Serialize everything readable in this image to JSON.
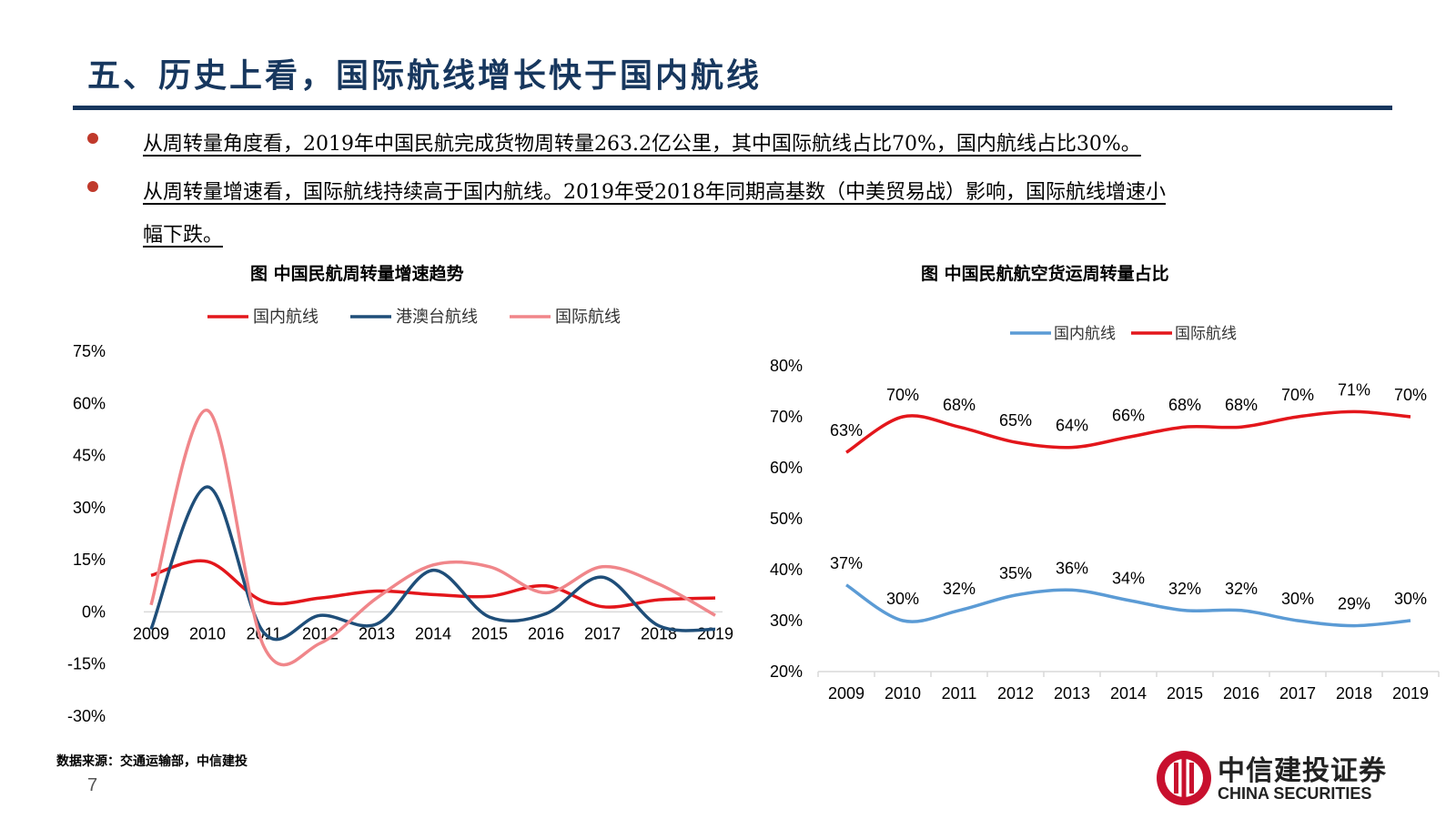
{
  "header": {
    "title": "五、历史上看，国际航线增长快于国内航线"
  },
  "bullets": [
    "从周转量角度看，2019年中国民航完成货物周转量263.2亿公里，其中国际航线占比70%，国内航线占比30%。",
    "从周转量增速看，国际航线持续高于国内航线。2019年受2018年同期高基数（中美贸易战）影响，国际航线增速小",
    "幅下跌。"
  ],
  "colors": {
    "title": "#17375e",
    "bullet": "#c0392b",
    "domestic_red": "#e3161b",
    "hkmotw_navy": "#1f4e79",
    "international_pink": "#f0868a",
    "domestic_blue": "#5b9bd5"
  },
  "chart_data": [
    {
      "type": "line",
      "title": "图  中国民航周转量增速趋势",
      "x": [
        "2009",
        "2010",
        "2011",
        "2012",
        "2013",
        "2014",
        "2015",
        "2016",
        "2017",
        "2018",
        "2019"
      ],
      "series": [
        {
          "name": "国内航线",
          "color": "#e3161b",
          "values": [
            10.5,
            14.5,
            3,
            4,
            6,
            5,
            4.5,
            7.5,
            1.5,
            3.5,
            4
          ]
        },
        {
          "name": "港澳台航线",
          "color": "#1f4e79",
          "values": [
            -5,
            36,
            -6,
            -1,
            -3.5,
            12,
            -1.5,
            -0.5,
            10,
            -4,
            -5
          ]
        },
        {
          "name": "国际航线",
          "color": "#f0868a",
          "values": [
            2,
            58,
            -10,
            -9,
            4,
            13.5,
            13,
            5.5,
            13,
            8,
            -1
          ]
        }
      ],
      "yticks": [
        "75%",
        "60%",
        "45%",
        "30%",
        "15%",
        "0%",
        "-15%",
        "-30%"
      ],
      "ylim": [
        -30,
        75
      ],
      "legend": "top",
      "grid": false
    },
    {
      "type": "line",
      "title": "图  中国民航航空货运周转量占比",
      "x": [
        "2009",
        "2010",
        "2011",
        "2012",
        "2013",
        "2014",
        "2015",
        "2016",
        "2017",
        "2018",
        "2019"
      ],
      "series": [
        {
          "name": "国内航线",
          "color": "#5b9bd5",
          "values": [
            37,
            30,
            32,
            35,
            36,
            34,
            32,
            32,
            30,
            29,
            30
          ],
          "labels": [
            "37%",
            "30%",
            "32%",
            "35%",
            "36%",
            "34%",
            "32%",
            "32%",
            "30%",
            "29%",
            "30%"
          ]
        },
        {
          "name": "国际航线",
          "color": "#e3161b",
          "values": [
            63,
            70,
            68,
            65,
            64,
            66,
            68,
            68,
            70,
            71,
            70
          ],
          "labels": [
            "63%",
            "70%",
            "68%",
            "65%",
            "64%",
            "66%",
            "68%",
            "68%",
            "70%",
            "71%",
            "70%"
          ]
        }
      ],
      "yticks": [
        "80%",
        "70%",
        "60%",
        "50%",
        "40%",
        "30%",
        "20%"
      ],
      "ylim": [
        20,
        80
      ],
      "legend": "top",
      "grid": false
    }
  ],
  "footer": {
    "source": "数据来源：交通运输部，中信建投",
    "page_number": "7",
    "logo_cn": "中信建投证券",
    "logo_en": "CHINA SECURITIES"
  }
}
